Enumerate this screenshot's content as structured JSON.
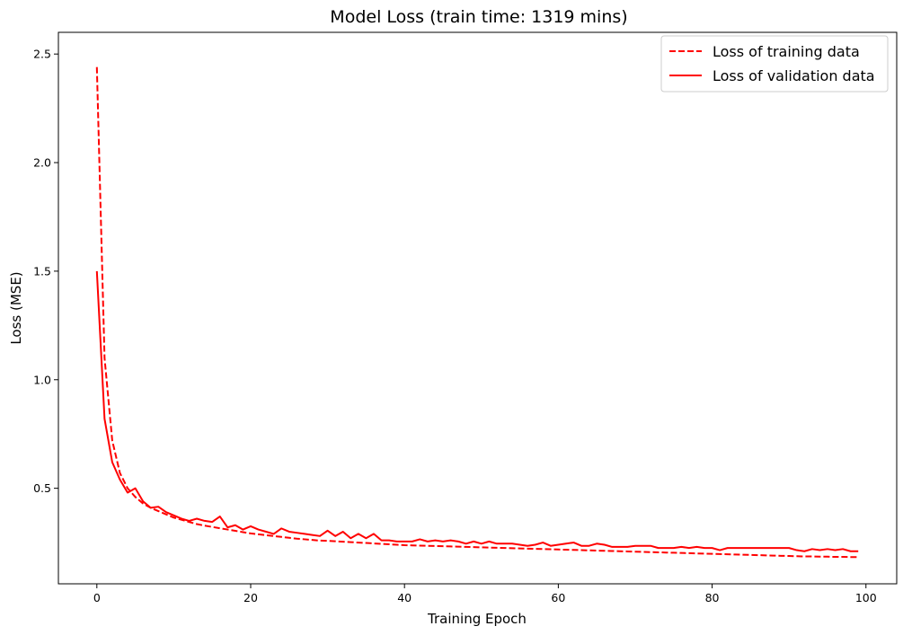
{
  "chart_data": {
    "type": "line",
    "title": "Model Loss (train time: 1319 mins)",
    "xlabel": "Training Epoch",
    "ylabel": "Loss (MSE)",
    "xlim": [
      -5,
      104
    ],
    "ylim": [
      0.06,
      2.6
    ],
    "xticks": [
      0,
      20,
      40,
      60,
      80,
      100
    ],
    "yticks": [
      0.5,
      1.0,
      1.5,
      2.0,
      2.5
    ],
    "xtick_labels": [
      "0",
      "20",
      "40",
      "60",
      "80",
      "100"
    ],
    "ytick_labels": [
      "0.5",
      "1.0",
      "1.5",
      "2.0",
      "2.5"
    ],
    "grid": false,
    "legend_position": "top-right",
    "colors": {
      "series": "#ff0000",
      "axes": "#000000"
    },
    "series": [
      {
        "name": "Loss of training data",
        "style": "dashed",
        "values": [
          2.44,
          1.1,
          0.72,
          0.57,
          0.5,
          0.46,
          0.43,
          0.41,
          0.395,
          0.38,
          0.365,
          0.355,
          0.345,
          0.335,
          0.328,
          0.322,
          0.316,
          0.31,
          0.304,
          0.298,
          0.292,
          0.288,
          0.284,
          0.28,
          0.276,
          0.272,
          0.268,
          0.265,
          0.262,
          0.259,
          0.258,
          0.256,
          0.254,
          0.252,
          0.25,
          0.248,
          0.246,
          0.244,
          0.242,
          0.24,
          0.238,
          0.237,
          0.236,
          0.235,
          0.234,
          0.233,
          0.232,
          0.231,
          0.23,
          0.229,
          0.228,
          0.227,
          0.226,
          0.225,
          0.224,
          0.223,
          0.222,
          0.221,
          0.22,
          0.219,
          0.218,
          0.217,
          0.216,
          0.215,
          0.214,
          0.213,
          0.212,
          0.211,
          0.21,
          0.209,
          0.208,
          0.207,
          0.206,
          0.205,
          0.204,
          0.203,
          0.202,
          0.201,
          0.2,
          0.199,
          0.198,
          0.197,
          0.196,
          0.195,
          0.194,
          0.193,
          0.192,
          0.191,
          0.19,
          0.189,
          0.188,
          0.187,
          0.186,
          0.186,
          0.185,
          0.185,
          0.184,
          0.184,
          0.183,
          0.183
        ]
      },
      {
        "name": "Loss of validation data",
        "style": "solid",
        "values": [
          1.5,
          0.82,
          0.62,
          0.54,
          0.48,
          0.5,
          0.44,
          0.41,
          0.415,
          0.39,
          0.375,
          0.36,
          0.35,
          0.36,
          0.35,
          0.345,
          0.37,
          0.32,
          0.33,
          0.31,
          0.325,
          0.31,
          0.3,
          0.29,
          0.315,
          0.3,
          0.295,
          0.29,
          0.285,
          0.28,
          0.305,
          0.28,
          0.3,
          0.27,
          0.29,
          0.27,
          0.29,
          0.26,
          0.26,
          0.255,
          0.255,
          0.255,
          0.265,
          0.255,
          0.26,
          0.255,
          0.26,
          0.255,
          0.245,
          0.255,
          0.245,
          0.255,
          0.245,
          0.245,
          0.245,
          0.24,
          0.235,
          0.24,
          0.25,
          0.235,
          0.24,
          0.245,
          0.25,
          0.235,
          0.235,
          0.245,
          0.24,
          0.23,
          0.23,
          0.23,
          0.235,
          0.235,
          0.235,
          0.225,
          0.225,
          0.225,
          0.23,
          0.225,
          0.23,
          0.225,
          0.225,
          0.215,
          0.225,
          0.225,
          0.225,
          0.225,
          0.225,
          0.225,
          0.225,
          0.225,
          0.225,
          0.215,
          0.21,
          0.22,
          0.215,
          0.22,
          0.215,
          0.22,
          0.21,
          0.21
        ]
      }
    ]
  }
}
